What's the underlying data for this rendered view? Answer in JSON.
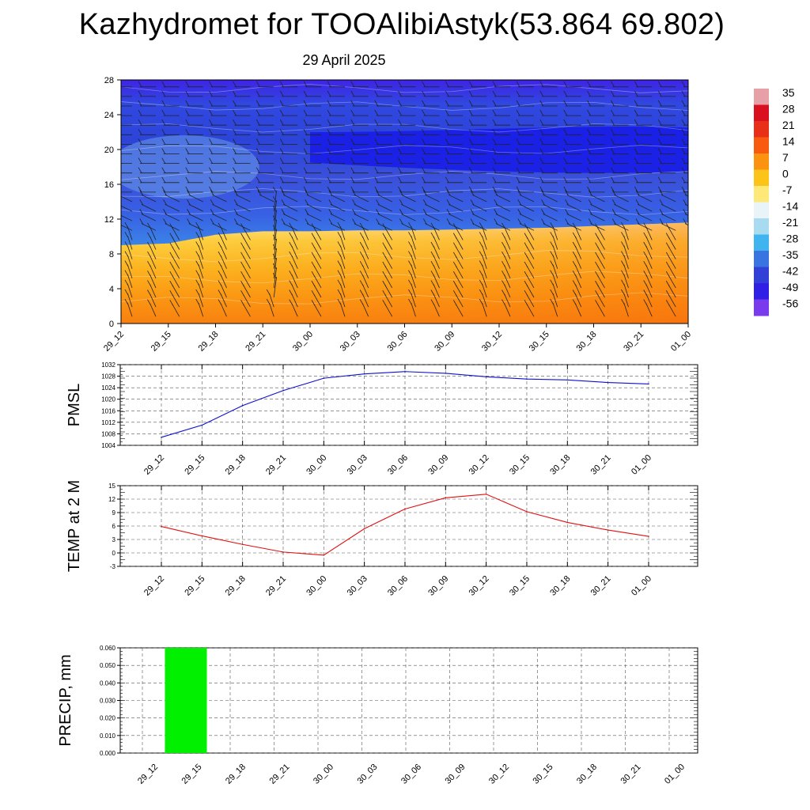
{
  "title": "Kazhydromet for TOOAlibiAstyk(53.864 69.802)",
  "subtitle": "29 April 2025",
  "time_labels": [
    "29_12",
    "29_15",
    "29_18",
    "29_21",
    "30_00",
    "30_03",
    "30_06",
    "30_09",
    "30_12",
    "30_15",
    "30_18",
    "30_21",
    "01_00"
  ],
  "chart_data": [
    {
      "type": "heatmap",
      "name_key": "cross_section",
      "x": [
        "29_12",
        "29_15",
        "29_18",
        "29_21",
        "30_00",
        "30_03",
        "30_06",
        "30_09",
        "30_12",
        "30_15",
        "30_18",
        "30_21",
        "01_00"
      ],
      "ylim": [
        0,
        28
      ],
      "yticks": [
        0,
        4,
        8,
        12,
        16,
        20,
        24,
        28
      ],
      "colorbar": {
        "labels": [
          "35",
          "28",
          "21",
          "14",
          "7",
          "0",
          "-7",
          "-14",
          "-21",
          "-28",
          "-35",
          "-42",
          "-49",
          "-56"
        ],
        "colors": [
          "#e8a0a8",
          "#d81020",
          "#e83018",
          "#f85a10",
          "#fb9210",
          "#fcc418",
          "#fee878",
          "#e8f4f8",
          "#a8daf0",
          "#40b4ee",
          "#3a74e0",
          "#3340d8",
          "#3020e6",
          "#7a3aee"
        ]
      },
      "freezing_level": [
        9.0,
        9.2,
        10.2,
        10.6,
        10.6,
        10.7,
        10.7,
        10.8,
        10.9,
        11.0,
        11.2,
        11.4,
        11.6
      ]
    },
    {
      "type": "line",
      "ylabel": "PMSL",
      "ylim": [
        1004,
        1032
      ],
      "yticks": [
        1004,
        1008,
        1012,
        1016,
        1020,
        1024,
        1028,
        1032
      ],
      "x": [
        "29_12",
        "29_15",
        "29_18",
        "29_21",
        "30_00",
        "30_03",
        "30_06",
        "30_09",
        "30_12",
        "30_15",
        "30_18",
        "30_21",
        "01_00"
      ],
      "values": [
        1006.8,
        1011.0,
        1017.8,
        1023.0,
        1027.3,
        1028.8,
        1029.6,
        1029.0,
        1027.8,
        1027.0,
        1026.7,
        1025.8,
        1025.3
      ],
      "color": "#1010d0"
    },
    {
      "type": "line",
      "ylabel": "TEMP at 2 M",
      "ylim": [
        -3,
        15
      ],
      "yticks": [
        -3,
        0,
        3,
        6,
        9,
        12,
        15
      ],
      "x": [
        "29_12",
        "29_15",
        "29_18",
        "29_21",
        "30_00",
        "30_03",
        "30_06",
        "30_09",
        "30_12",
        "30_15",
        "30_18",
        "30_21",
        "01_00"
      ],
      "values": [
        5.9,
        3.8,
        1.9,
        0.2,
        -0.5,
        5.4,
        9.8,
        12.3,
        13.1,
        9.2,
        6.8,
        5.1,
        3.7
      ],
      "color": "#e01010"
    },
    {
      "type": "bar",
      "ylabel": "PRECIP, mm",
      "ylim": [
        0,
        0.06
      ],
      "yticks": [
        "0.000",
        "0.010",
        "0.020",
        "0.030",
        "0.040",
        "0.050",
        "0.060"
      ],
      "categories": [
        "29_12",
        "29_15",
        "29_18",
        "29_21",
        "30_00",
        "30_03",
        "30_06",
        "30_09",
        "30_12",
        "30_15",
        "30_18",
        "30_21",
        "01_00"
      ],
      "values": [
        0,
        0.06,
        0,
        0,
        0,
        0,
        0,
        0,
        0,
        0,
        0,
        0,
        0
      ],
      "color": "#00f000"
    }
  ]
}
